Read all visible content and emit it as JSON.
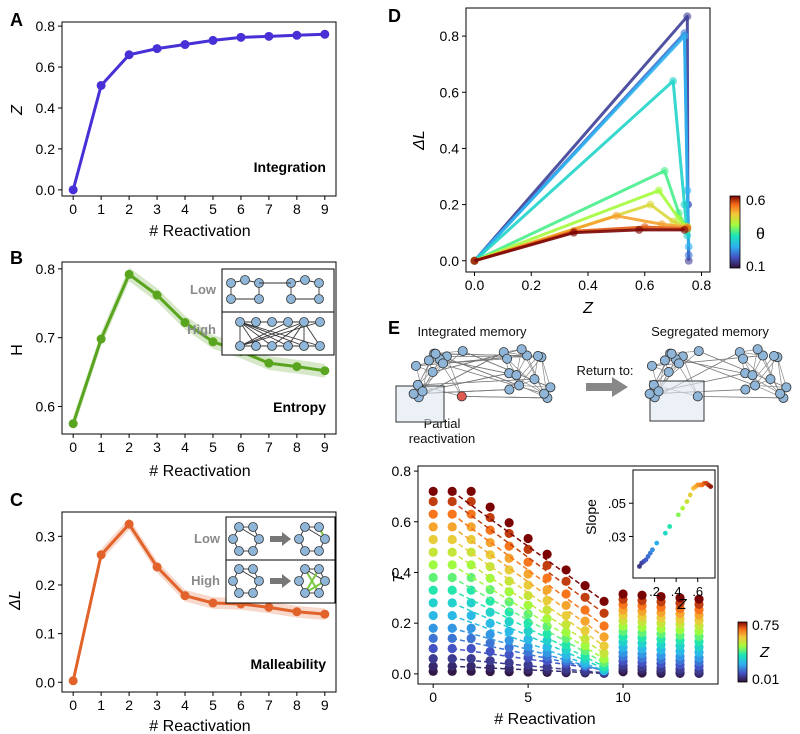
{
  "panels": {
    "A": {
      "letter": "A",
      "annotation": "Integration"
    },
    "B": {
      "letter": "B",
      "annotation": "Entropy",
      "inset_low": "Low",
      "inset_high": "High"
    },
    "C": {
      "letter": "C",
      "annotation": "Malleability",
      "inset_low": "Low",
      "inset_high": "High"
    },
    "D": {
      "letter": "D",
      "colorbar_label": "θ",
      "colorbar_min": "0.1",
      "colorbar_max": "0.6"
    },
    "E": {
      "letter": "E",
      "integrated_label": "Integrated memory",
      "segregated_label": "Segregated memory",
      "return_label": "Return to:",
      "partial_line1": "Partial",
      "partial_line2": "reactivation",
      "colorbar_label": "Z",
      "colorbar_min": "0.01",
      "colorbar_max": "0.75"
    }
  },
  "chart_data": [
    {
      "id": "A",
      "type": "line",
      "color": "#4630d6",
      "x": [
        0,
        1,
        2,
        3,
        4,
        5,
        6,
        7,
        8,
        9
      ],
      "y": [
        0.0,
        0.51,
        0.66,
        0.69,
        0.71,
        0.73,
        0.745,
        0.75,
        0.755,
        0.76
      ],
      "xlabel": "# Reactivation",
      "ylabel": "Z",
      "xlim": [
        -0.4,
        9.4
      ],
      "ylim": [
        -0.03,
        0.82
      ],
      "xticks": [
        0,
        1,
        2,
        3,
        4,
        5,
        6,
        7,
        8,
        9
      ],
      "yticks": [
        0.0,
        0.2,
        0.4,
        0.6,
        0.8
      ],
      "ytick_labels": [
        "0.0",
        "0.2",
        "0.4",
        "0.6",
        "0.8"
      ]
    },
    {
      "id": "B",
      "type": "line",
      "color": "#5aa51f",
      "x": [
        0,
        1,
        2,
        3,
        4,
        5,
        6,
        7,
        8,
        9
      ],
      "y": [
        0.575,
        0.698,
        0.792,
        0.762,
        0.722,
        0.694,
        0.68,
        0.663,
        0.658,
        0.652
      ],
      "xlabel": "# Reactivation",
      "ylabel": "H",
      "xlim": [
        -0.4,
        9.4
      ],
      "ylim": [
        0.56,
        0.81
      ],
      "xticks": [
        0,
        1,
        2,
        3,
        4,
        5,
        6,
        7,
        8,
        9
      ],
      "yticks": [
        0.6,
        0.7,
        0.8
      ],
      "ytick_labels": [
        "0.6",
        "0.7",
        "0.8"
      ]
    },
    {
      "id": "C",
      "type": "line",
      "color": "#e1632b",
      "x": [
        0,
        1,
        2,
        3,
        4,
        5,
        6,
        7,
        8,
        9
      ],
      "y": [
        0.003,
        0.262,
        0.325,
        0.237,
        0.178,
        0.163,
        0.161,
        0.154,
        0.145,
        0.14
      ],
      "xlabel": "# Reactivation",
      "ylabel": "ΔL",
      "xlim": [
        -0.4,
        9.4
      ],
      "ylim": [
        -0.02,
        0.35
      ],
      "xticks": [
        0,
        1,
        2,
        3,
        4,
        5,
        6,
        7,
        8,
        9
      ],
      "yticks": [
        0.0,
        0.1,
        0.2,
        0.3
      ],
      "ytick_labels": [
        "0.0",
        "0.1",
        "0.2",
        "0.3"
      ]
    },
    {
      "id": "D",
      "type": "line",
      "xlabel": "Z",
      "ylabel": "ΔL",
      "xlim": [
        -0.03,
        0.83
      ],
      "ylim": [
        -0.04,
        0.9
      ],
      "xticks": [
        0.0,
        0.2,
        0.4,
        0.6,
        0.8
      ],
      "xtick_labels": [
        "0.0",
        "0.2",
        "0.4",
        "0.6",
        "0.8"
      ],
      "yticks": [
        0.0,
        0.2,
        0.4,
        0.6,
        0.8
      ],
      "ytick_labels": [
        "0.0",
        "0.2",
        "0.4",
        "0.6",
        "0.8"
      ],
      "colorbar_range": [
        0.1,
        0.6
      ],
      "series": [
        {
          "theta": 0.15,
          "points": [
            [
              0.0,
              0.0
            ],
            [
              0.75,
              0.87
            ],
            [
              0.752,
              0.2
            ],
            [
              0.755,
              0.0
            ]
          ]
        },
        {
          "theta": 0.2,
          "points": [
            [
              0.0,
              0.0
            ],
            [
              0.74,
              0.81
            ],
            [
              0.752,
              0.2
            ],
            [
              0.755,
              0.02
            ]
          ]
        },
        {
          "theta": 0.25,
          "points": [
            [
              0.0,
              0.0
            ],
            [
              0.74,
              0.8
            ],
            [
              0.75,
              0.25
            ],
            [
              0.755,
              0.05
            ]
          ]
        },
        {
          "theta": 0.3,
          "points": [
            [
              0.0,
              0.0
            ],
            [
              0.7,
              0.64
            ],
            [
              0.74,
              0.2
            ],
            [
              0.75,
              0.09
            ]
          ]
        },
        {
          "theta": 0.35,
          "points": [
            [
              0.0,
              0.0
            ],
            [
              0.67,
              0.32
            ],
            [
              0.72,
              0.17
            ],
            [
              0.75,
              0.11
            ]
          ]
        },
        {
          "theta": 0.4,
          "points": [
            [
              0.0,
              0.0
            ],
            [
              0.65,
              0.25
            ],
            [
              0.72,
              0.15
            ],
            [
              0.75,
              0.12
            ]
          ]
        },
        {
          "theta": 0.45,
          "points": [
            [
              0.0,
              0.0
            ],
            [
              0.62,
              0.2
            ],
            [
              0.7,
              0.14
            ],
            [
              0.75,
              0.12
            ]
          ]
        },
        {
          "theta": 0.5,
          "points": [
            [
              0.0,
              0.0
            ],
            [
              0.5,
              0.16
            ],
            [
              0.66,
              0.13
            ],
            [
              0.75,
              0.12
            ]
          ]
        },
        {
          "theta": 0.55,
          "points": [
            [
              0.0,
              0.0
            ],
            [
              0.35,
              0.105
            ],
            [
              0.6,
              0.12
            ],
            [
              0.75,
              0.115
            ]
          ]
        },
        {
          "theta": 0.6,
          "points": [
            [
              0.0,
              0.0
            ],
            [
              0.35,
              0.1
            ],
            [
              0.58,
              0.11
            ],
            [
              0.74,
              0.11
            ]
          ]
        }
      ]
    },
    {
      "id": "E_main",
      "type": "scatter",
      "xlabel": "# Reactivation",
      "ylabel": "T",
      "xlim": [
        -0.8,
        15.0
      ],
      "ylim": [
        -0.04,
        0.82
      ],
      "xticks": [
        0,
        5,
        10
      ],
      "yticks": [
        0.0,
        0.2,
        0.4,
        0.6,
        0.8
      ],
      "ytick_labels": [
        "0.0",
        "0.2",
        "0.4",
        "0.6",
        "0.8"
      ],
      "colorbar_range": [
        0.01,
        0.75
      ],
      "series_Z": [
        0.02,
        0.05,
        0.08,
        0.12,
        0.16,
        0.2,
        0.25,
        0.3,
        0.35,
        0.4,
        0.45,
        0.5,
        0.55,
        0.6,
        0.65,
        0.7,
        0.75
      ],
      "series_start_T": [
        0.01,
        0.03,
        0.06,
        0.1,
        0.14,
        0.18,
        0.23,
        0.28,
        0.33,
        0.38,
        0.43,
        0.48,
        0.53,
        0.58,
        0.63,
        0.68,
        0.72
      ],
      "series_slope": [
        0.001,
        0.004,
        0.008,
        0.012,
        0.018,
        0.024,
        0.031,
        0.037,
        0.043,
        0.048,
        0.053,
        0.057,
        0.06,
        0.062,
        0.063,
        0.063,
        0.062
      ],
      "drop_after": 9,
      "x_end": 14
    },
    {
      "id": "E_inset",
      "type": "scatter",
      "xlabel": "Z",
      "ylabel": "Slope",
      "xlim": [
        0.0,
        0.76
      ],
      "ylim": [
        0.005,
        0.07
      ],
      "xticks": [
        0.2,
        0.4,
        0.6
      ],
      "xtick_labels": [
        ".2",
        ".4",
        ".6"
      ],
      "yticks": [
        0.03,
        0.05
      ],
      "ytick_labels": [
        ".03",
        ".05"
      ],
      "x": [
        0.06,
        0.08,
        0.1,
        0.12,
        0.14,
        0.16,
        0.18,
        0.22,
        0.3,
        0.34,
        0.42,
        0.46,
        0.5,
        0.53,
        0.56,
        0.58,
        0.6,
        0.62,
        0.64,
        0.66,
        0.68,
        0.7,
        0.72
      ],
      "y": [
        0.012,
        0.014,
        0.015,
        0.016,
        0.018,
        0.02,
        0.022,
        0.026,
        0.032,
        0.036,
        0.043,
        0.047,
        0.051,
        0.055,
        0.059,
        0.06,
        0.061,
        0.061,
        0.061,
        0.062,
        0.062,
        0.061,
        0.06
      ]
    }
  ]
}
